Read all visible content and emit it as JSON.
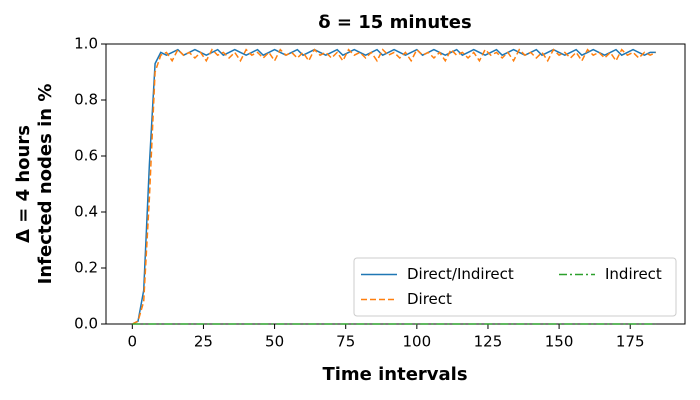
{
  "chart_data": {
    "type": "line",
    "title": "δ = 15 minutes",
    "xlabel": "Time intervals",
    "ylabel": [
      "Δ = 4 hours",
      "Infected nodes in %"
    ],
    "x": [
      0,
      2,
      4,
      6,
      8,
      10,
      12,
      14,
      16,
      18,
      20,
      22,
      24,
      26,
      28,
      30,
      32,
      34,
      36,
      38,
      40,
      42,
      44,
      46,
      48,
      50,
      52,
      54,
      56,
      58,
      60,
      62,
      64,
      66,
      68,
      70,
      72,
      74,
      76,
      78,
      80,
      82,
      84,
      86,
      88,
      90,
      92,
      94,
      96,
      98,
      100,
      102,
      104,
      106,
      108,
      110,
      112,
      114,
      116,
      118,
      120,
      122,
      124,
      126,
      128,
      130,
      132,
      134,
      136,
      138,
      140,
      142,
      144,
      146,
      148,
      150,
      152,
      154,
      156,
      158,
      160,
      162,
      164,
      166,
      168,
      170,
      172,
      174,
      176,
      178,
      180,
      182,
      184
    ],
    "series": [
      {
        "name": "Direct/Indirect",
        "color": "#1f77b4",
        "dash": "solid",
        "values": [
          0,
          0.01,
          0.12,
          0.57,
          0.93,
          0.97,
          0.96,
          0.97,
          0.98,
          0.96,
          0.97,
          0.98,
          0.97,
          0.96,
          0.97,
          0.98,
          0.96,
          0.97,
          0.98,
          0.97,
          0.96,
          0.97,
          0.98,
          0.96,
          0.97,
          0.98,
          0.97,
          0.96,
          0.97,
          0.98,
          0.96,
          0.97,
          0.98,
          0.97,
          0.96,
          0.97,
          0.98,
          0.96,
          0.97,
          0.98,
          0.97,
          0.96,
          0.97,
          0.98,
          0.96,
          0.97,
          0.98,
          0.97,
          0.96,
          0.97,
          0.98,
          0.96,
          0.97,
          0.98,
          0.97,
          0.96,
          0.97,
          0.98,
          0.96,
          0.97,
          0.98,
          0.97,
          0.96,
          0.97,
          0.98,
          0.96,
          0.97,
          0.98,
          0.97,
          0.96,
          0.97,
          0.98,
          0.96,
          0.97,
          0.98,
          0.97,
          0.96,
          0.97,
          0.98,
          0.96,
          0.97,
          0.98,
          0.97,
          0.96,
          0.97,
          0.98,
          0.96,
          0.97,
          0.98,
          0.97,
          0.96,
          0.97,
          0.97
        ]
      },
      {
        "name": "Direct",
        "color": "#ff7f0e",
        "dash": "dashed",
        "values": [
          0,
          0.01,
          0.08,
          0.45,
          0.9,
          0.96,
          0.97,
          0.94,
          0.98,
          0.96,
          0.97,
          0.95,
          0.97,
          0.94,
          0.98,
          0.96,
          0.97,
          0.95,
          0.97,
          0.94,
          0.98,
          0.96,
          0.97,
          0.95,
          0.97,
          0.94,
          0.98,
          0.96,
          0.97,
          0.95,
          0.97,
          0.94,
          0.98,
          0.96,
          0.97,
          0.95,
          0.97,
          0.94,
          0.98,
          0.96,
          0.97,
          0.95,
          0.97,
          0.94,
          0.98,
          0.96,
          0.97,
          0.95,
          0.97,
          0.94,
          0.98,
          0.96,
          0.97,
          0.95,
          0.97,
          0.94,
          0.98,
          0.96,
          0.97,
          0.95,
          0.97,
          0.94,
          0.98,
          0.96,
          0.97,
          0.95,
          0.97,
          0.94,
          0.98,
          0.96,
          0.97,
          0.95,
          0.97,
          0.94,
          0.98,
          0.96,
          0.97,
          0.95,
          0.97,
          0.94,
          0.98,
          0.96,
          0.97,
          0.95,
          0.97,
          0.94,
          0.98,
          0.96,
          0.97,
          0.95,
          0.97,
          0.96,
          0.97
        ]
      },
      {
        "name": "Indirect",
        "color": "#2ca02c",
        "dash": "dashdot",
        "values": [
          0,
          0,
          0,
          0,
          0,
          0,
          0,
          0,
          0,
          0,
          0,
          0,
          0,
          0,
          0,
          0,
          0,
          0,
          0,
          0,
          0,
          0,
          0,
          0,
          0,
          0,
          0,
          0,
          0,
          0,
          0,
          0,
          0,
          0,
          0,
          0,
          0,
          0,
          0,
          0,
          0,
          0,
          0,
          0,
          0,
          0,
          0,
          0,
          0,
          0,
          0,
          0,
          0,
          0,
          0,
          0,
          0,
          0,
          0,
          0,
          0,
          0,
          0,
          0,
          0,
          0,
          0,
          0,
          0,
          0,
          0,
          0,
          0,
          0,
          0,
          0,
          0,
          0,
          0,
          0,
          0,
          0,
          0,
          0,
          0,
          0,
          0,
          0,
          0,
          0,
          0,
          0,
          0
        ]
      }
    ],
    "xlim": [
      -9.25,
      194.25
    ],
    "xticks": [
      0,
      25,
      50,
      75,
      100,
      125,
      150,
      175
    ],
    "ylim": [
      0,
      1
    ],
    "yticks": [
      {
        "value": 0,
        "label": "0.0"
      },
      {
        "value": 0.2,
        "label": "0.2"
      },
      {
        "value": 0.4,
        "label": "0.4"
      },
      {
        "value": 0.6,
        "label": "0.6"
      },
      {
        "value": 0.8,
        "label": "0.8"
      },
      {
        "value": 1,
        "label": "1.0"
      }
    ],
    "legend": "lower right",
    "legend_columns": 2,
    "grid": false
  }
}
